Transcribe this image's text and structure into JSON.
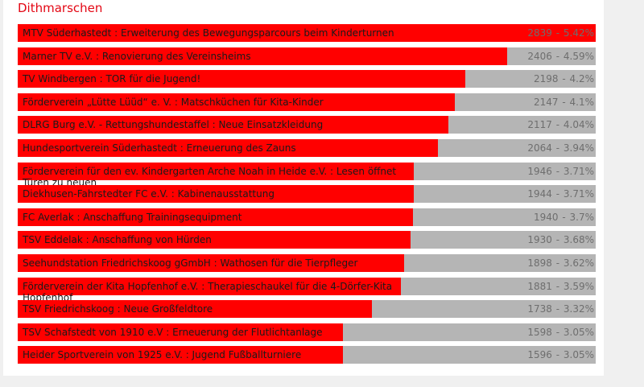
{
  "header": {
    "title": "Dithmarschen"
  },
  "chart_data": {
    "type": "bar",
    "orientation": "horizontal",
    "title": "Dithmarschen",
    "colors": {
      "bar": "#ff0000",
      "track": "#b5b5b5",
      "title": "#e30613"
    },
    "max": 2839,
    "bars": [
      {
        "label": "MTV Süderhastedt : Erweiterung des Bewegungsparcours beim Kinderturnen",
        "value": 2839,
        "percent": "5.42%"
      },
      {
        "label": "Marner TV e.V. : Renovierung des Vereinsheims",
        "value": 2406,
        "percent": "4.59%"
      },
      {
        "label": "TV Windbergen : TOR für die Jugend!",
        "value": 2198,
        "percent": "4.2%"
      },
      {
        "label": "Förderverein „Lütte Lüüd“ e. V. : Matschküchen für Kita-Kinder",
        "value": 2147,
        "percent": "4.1%"
      },
      {
        "label": "DLRG Burg e.V. - Rettungshundestaffel : Neue Einsatzkleidung",
        "value": 2117,
        "percent": "4.04%"
      },
      {
        "label": "Hundesportverein Süderhastedt : Erneuerung des Zauns",
        "value": 2064,
        "percent": "3.94%"
      },
      {
        "label": "Förderverein für den ev. Kindergarten Arche Noah in Heide e.V. : Lesen öffnet Türen zu neuen",
        "value": 1946,
        "percent": "3.71%"
      },
      {
        "label": "Diekhusen-Fahrstedter FC e.V. : Kabinenausstattung",
        "value": 1944,
        "percent": "3.71%"
      },
      {
        "label": "FC Averlak : Anschaffung Trainingsequipment",
        "value": 1940,
        "percent": "3.7%"
      },
      {
        "label": "TSV Eddelak : Anschaffung von Hürden",
        "value": 1930,
        "percent": "3.68%"
      },
      {
        "label": "Seehundstation Friedrichskoog gGmbH : Wathosen für die Tierpfleger",
        "value": 1898,
        "percent": "3.62%"
      },
      {
        "label": "Förderverein der Kita Hopfenhof e.V. : Therapieschaukel für die 4-Dörfer-Kita Hopfenhof",
        "value": 1881,
        "percent": "3.59%"
      },
      {
        "label": "TSV Friedrichskoog : Neue Großfeldtore",
        "value": 1738,
        "percent": "3.32%"
      },
      {
        "label": "TSV Schafstedt von 1910 e.V : Erneuerung der Flutlichtanlage",
        "value": 1598,
        "percent": "3.05%"
      },
      {
        "label": "Heider Sportverein von 1925 e.V. : Jugend Fußballturniere",
        "value": 1596,
        "percent": "3.05%"
      }
    ]
  }
}
